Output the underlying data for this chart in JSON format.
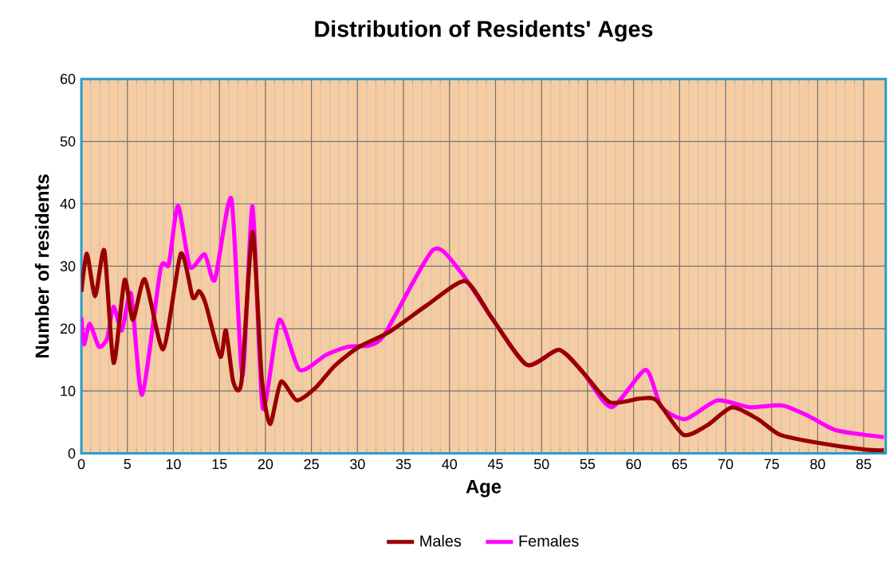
{
  "chart_data": {
    "type": "line",
    "title": "Distribution of Residents' Ages",
    "xlabel": "Age",
    "ylabel": "Number of residents",
    "xlim": [
      0,
      87.4
    ],
    "ylim": [
      0,
      60
    ],
    "xticks": [
      0,
      5,
      10,
      15,
      20,
      25,
      30,
      35,
      40,
      45,
      50,
      55,
      60,
      65,
      70,
      75,
      80,
      85
    ],
    "yticks": [
      0,
      10,
      20,
      30,
      40,
      50,
      60
    ],
    "grid": true,
    "legend": "bottom",
    "marker": "none",
    "line_style": "solid",
    "series": [
      {
        "name": "Males",
        "color": "#990000",
        "x": [
          0,
          0.6,
          1.5,
          2.5,
          3.5,
          4.7,
          5.6,
          6.9,
          8.9,
          10.8,
          12.1,
          12.8,
          13.5,
          15.1,
          15.7,
          16.5,
          17.4,
          18.6,
          19.6,
          20.5,
          21.7,
          23.4,
          25.5,
          27.5,
          30.1,
          33.5,
          37.6,
          41.7,
          44.6,
          48.4,
          51.9,
          54.5,
          57.4,
          60.7,
          62.5,
          65.4,
          68,
          70.7,
          73.5,
          75.9,
          80,
          85.2,
          87.2
        ],
        "values": [
          25.9,
          32,
          25.2,
          32.5,
          14.5,
          27.8,
          21.4,
          27.9,
          16.7,
          32,
          25,
          26,
          24,
          15.5,
          19.7,
          11.5,
          11.5,
          35.5,
          12,
          4.7,
          11.5,
          8.5,
          10.6,
          14,
          17,
          19.5,
          23.8,
          27.6,
          21.7,
          14.2,
          16.6,
          13,
          8.2,
          8.8,
          8.5,
          3,
          4.5,
          7.4,
          5.5,
          3,
          1.7,
          0.6,
          0.5
        ]
      },
      {
        "name": "Females",
        "color": "#ff00ff",
        "x": [
          0,
          0.3,
          0.9,
          1.9,
          2.8,
          3.5,
          4.4,
          5.4,
          6.6,
          8.6,
          9.5,
          10.5,
          11.8,
          13.4,
          14.5,
          16.3,
          17.5,
          18.6,
          19.7,
          21.5,
          23.7,
          26.6,
          29,
          31.3,
          33,
          38.2,
          41.1,
          44.6,
          48.4,
          51.9,
          54.5,
          57.6,
          61.3,
          63,
          65.6,
          69.1,
          72.6,
          76.1,
          79,
          82,
          87.2
        ],
        "values": [
          21.8,
          17.5,
          20.8,
          17.1,
          18.4,
          23.5,
          19.7,
          25.6,
          9.4,
          29.5,
          30.3,
          39.7,
          29.9,
          31.9,
          27.8,
          40.8,
          12.4,
          39.6,
          7.3,
          21.4,
          13.4,
          15.8,
          17.1,
          17.3,
          19.2,
          32.6,
          29.3,
          21.7,
          14.2,
          16.6,
          13,
          7.4,
          13.4,
          7.5,
          5.5,
          8.5,
          7.4,
          7.7,
          6,
          3.7,
          2.6
        ]
      }
    ]
  }
}
